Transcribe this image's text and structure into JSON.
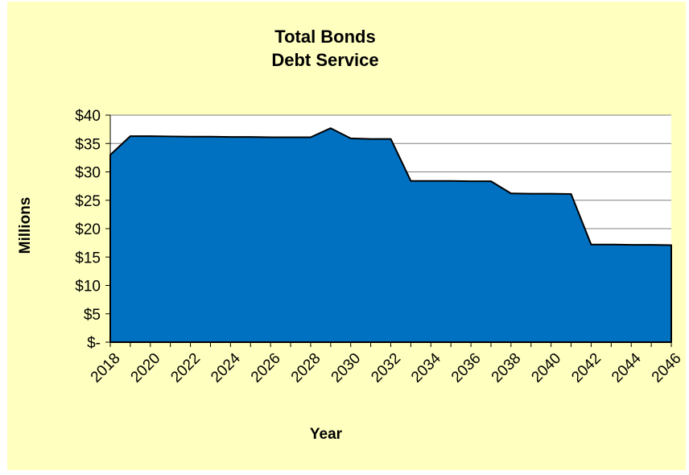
{
  "chart_data": {
    "type": "area",
    "title_lines": [
      "Total Bonds",
      "Debt Service"
    ],
    "xlabel": "Year",
    "ylabel": "Millions",
    "x": [
      2018,
      2019,
      2020,
      2021,
      2022,
      2023,
      2024,
      2025,
      2026,
      2027,
      2028,
      2029,
      2030,
      2031,
      2032,
      2033,
      2034,
      2035,
      2036,
      2037,
      2038,
      2039,
      2040,
      2041,
      2042,
      2043,
      2044,
      2045,
      2046
    ],
    "values": [
      33.0,
      36.3,
      36.3,
      36.25,
      36.2,
      36.2,
      36.15,
      36.15,
      36.1,
      36.1,
      36.1,
      37.7,
      35.9,
      35.8,
      35.8,
      28.4,
      28.4,
      28.4,
      28.35,
      28.35,
      26.2,
      26.15,
      26.15,
      26.1,
      17.2,
      17.2,
      17.15,
      17.15,
      17.1
    ],
    "x_tick_labels": [
      "2018",
      "2020",
      "2022",
      "2024",
      "2026",
      "2028",
      "2030",
      "2032",
      "2034",
      "2036",
      "2038",
      "2040",
      "2042",
      "2044",
      "2046"
    ],
    "y_tick_values": [
      0,
      5,
      10,
      15,
      20,
      25,
      30,
      35,
      40
    ],
    "y_tick_labels": [
      "$-",
      "$5",
      "$10",
      "$15",
      "$20",
      "$25",
      "$30",
      "$35",
      "$40"
    ],
    "ylim": [
      0,
      40
    ],
    "xlim": [
      2018,
      2046
    ],
    "grid": "horizontal",
    "legend": "none",
    "colors": {
      "background": "#FFFFC0",
      "plot_area": "#FFFFFF",
      "fill": "#0070C0",
      "line": "#000000",
      "gridline": "#808080"
    }
  }
}
